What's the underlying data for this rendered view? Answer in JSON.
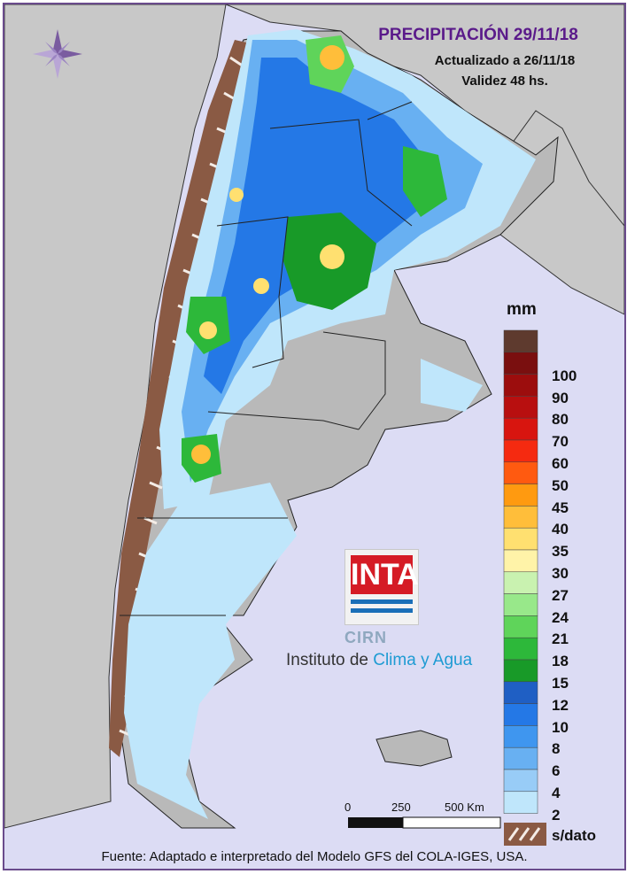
{
  "header": {
    "title": "PRECIPITACIÓN 29/11/18",
    "updated": "Actualizado a 26/11/18",
    "validity": "Validez 48 hs."
  },
  "legend": {
    "unit": "mm",
    "levels": [
      {
        "label": "",
        "color": "#5e3a2e"
      },
      {
        "label": "100",
        "color": "#7a0f0f"
      },
      {
        "label": "90",
        "color": "#9c0d0d"
      },
      {
        "label": "80",
        "color": "#b80f0f"
      },
      {
        "label": "70",
        "color": "#d8150f"
      },
      {
        "label": "60",
        "color": "#f52a10"
      },
      {
        "label": "50",
        "color": "#ff5a10"
      },
      {
        "label": "45",
        "color": "#ff9a10"
      },
      {
        "label": "40",
        "color": "#ffbe3a"
      },
      {
        "label": "35",
        "color": "#ffe070"
      },
      {
        "label": "30",
        "color": "#fff3a8"
      },
      {
        "label": "27",
        "color": "#c9f2b0"
      },
      {
        "label": "24",
        "color": "#98e88a"
      },
      {
        "label": "21",
        "color": "#5fd45a"
      },
      {
        "label": "18",
        "color": "#2db83a"
      },
      {
        "label": "15",
        "color": "#189a28"
      },
      {
        "label": "12",
        "color": "#1f5fc4"
      },
      {
        "label": "10",
        "color": "#2478e6"
      },
      {
        "label": "8",
        "color": "#3f96ef"
      },
      {
        "label": "6",
        "color": "#68b0f2"
      },
      {
        "label": "4",
        "color": "#98ccf7"
      },
      {
        "label": "2",
        "color": "#bfe6fb"
      }
    ],
    "no_data_label": "s/dato",
    "no_data_color": "#8a5a44"
  },
  "scale": {
    "ticks": [
      "0",
      "250",
      "500 Km"
    ]
  },
  "logo": {
    "inta": "INTA",
    "cirn": "CIRN",
    "institute_prefix": "Instituto de ",
    "institute_accent": "Clima y Agua"
  },
  "source": "Fuente: Adaptado e interpretado del Modelo GFS del COLA-IGES, USA.",
  "icons": [
    "compass-rose-icon"
  ]
}
